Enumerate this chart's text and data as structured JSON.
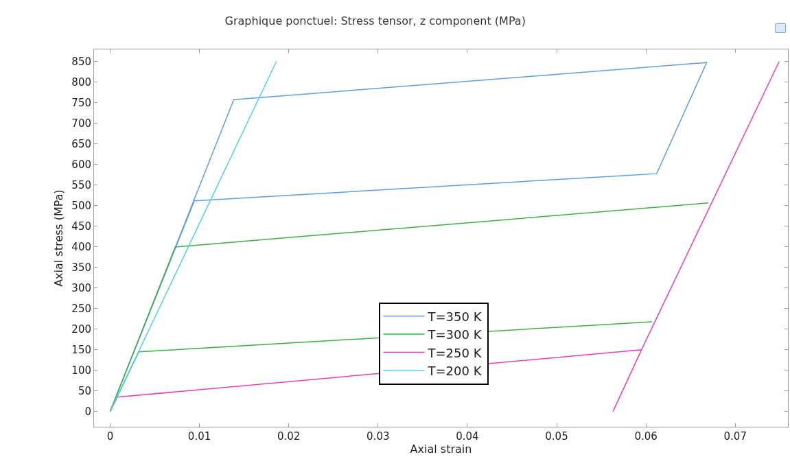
{
  "chart_data": {
    "type": "line",
    "title": "Graphique ponctuel: Stress tensor, z component (MPa)",
    "xlabel": "Axial strain",
    "ylabel": "Axial stress (MPa)",
    "series": [
      {
        "name": "T=350 K",
        "color": "#5b9ee6",
        "x": [
          0,
          0.01385,
          0.0668,
          0.0612,
          0.00943,
          0.0004
        ],
        "values": [
          0,
          758,
          848,
          578,
          512,
          22
        ]
      },
      {
        "name": "T=300 K",
        "color": "#3cb043",
        "x": [
          0.0607,
          0.0032,
          0,
          0.0073,
          0.067
        ],
        "values": [
          218,
          145,
          0,
          400,
          507
        ]
      },
      {
        "name": "T=250 K",
        "color": "#f03cb4",
        "x": [
          0,
          0.0008,
          0.0595,
          0.0749,
          0.0595,
          0.0563
        ],
        "values": [
          0,
          35,
          150,
          850,
          150,
          0
        ]
      },
      {
        "name": "T=200 K",
        "color": "#4fd2e8",
        "x": [
          0,
          0.0186
        ],
        "values": [
          0,
          850
        ]
      }
    ],
    "xlim": [
      -0.0018,
      0.0759
    ],
    "xticks": [
      0,
      0.01,
      0.02,
      0.03,
      0.04,
      0.05,
      0.06,
      0.07
    ],
    "ylim": [
      -37,
      880
    ],
    "yticks": [
      0,
      50,
      100,
      150,
      200,
      250,
      300,
      350,
      400,
      450,
      500,
      550,
      600,
      650,
      700,
      750,
      800,
      850
    ],
    "grid": false,
    "legend": "bottom",
    "line_style": "solid",
    "marker": "none"
  }
}
